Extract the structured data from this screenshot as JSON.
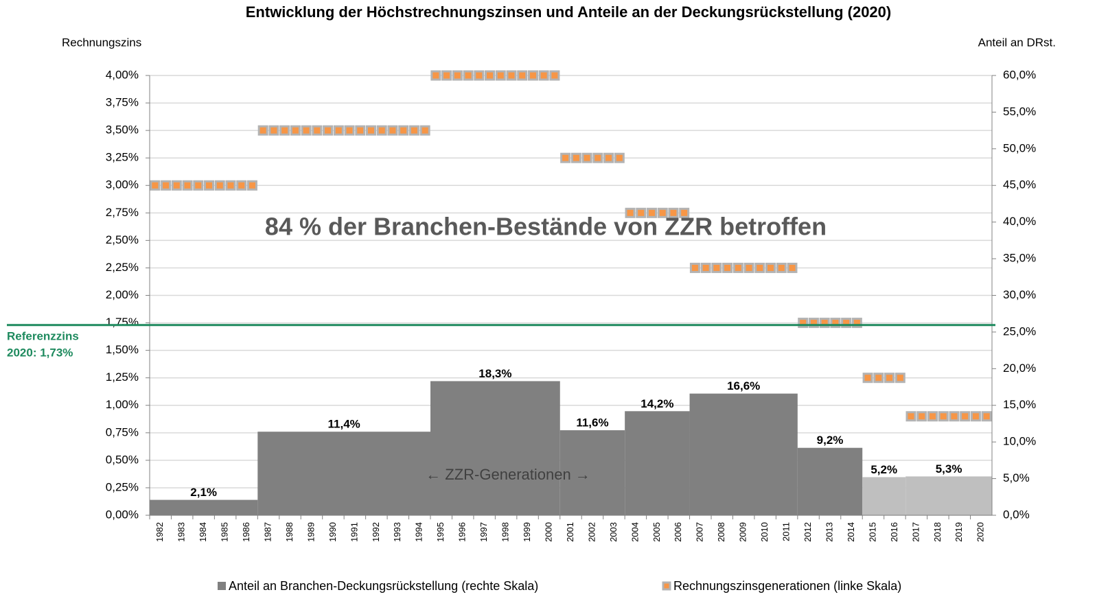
{
  "chart_data": {
    "type": "bar_step",
    "title": "Entwicklung der Höchstrechnungszinsen und Anteile an der Deckungsrückstellung (2020)",
    "y_label": "Rechnungszins",
    "y2_label": "Anteil an DRst.",
    "annotations": [
      "84 % der Branchen-Bestände von ZZR betroffen",
      "← ZZR-Generationen →"
    ],
    "categories": [
      "1982",
      "1983",
      "1984",
      "1985",
      "1986",
      "1987",
      "1988",
      "1989",
      "1990",
      "1991",
      "1992",
      "1993",
      "1994",
      "1995",
      "1996",
      "1997",
      "1998",
      "1999",
      "2000",
      "2001",
      "2002",
      "2003",
      "2004",
      "2005",
      "2006",
      "2007",
      "2008",
      "2009",
      "2010",
      "2011",
      "2012",
      "2013",
      "2014",
      "2015",
      "2016",
      "2017",
      "2018",
      "2019",
      "2020"
    ],
    "ylim": [
      0,
      4
    ],
    "yticks": [
      {
        "value": 0,
        "label": "0,00%"
      },
      {
        "value": 0.25,
        "label": "0,25%"
      },
      {
        "value": 0.5,
        "label": "0,50%"
      },
      {
        "value": 0.75,
        "label": "0,75%"
      },
      {
        "value": 1,
        "label": "1,00%"
      },
      {
        "value": 1.25,
        "label": "1,25%"
      },
      {
        "value": 1.5,
        "label": "1,50%"
      },
      {
        "value": 1.75,
        "label": "1,75%"
      },
      {
        "value": 2,
        "label": "2,00%"
      },
      {
        "value": 2.25,
        "label": "2,25%"
      },
      {
        "value": 2.5,
        "label": "2,50%"
      },
      {
        "value": 2.75,
        "label": "2,75%"
      },
      {
        "value": 3,
        "label": "3,00%"
      },
      {
        "value": 3.25,
        "label": "3,25%"
      },
      {
        "value": 3.5,
        "label": "3,50%"
      },
      {
        "value": 3.75,
        "label": "3,75%"
      },
      {
        "value": 4,
        "label": "4,00%"
      }
    ],
    "y2lim": [
      0,
      60
    ],
    "y2ticks": [
      {
        "value": 0,
        "label": "0,0%"
      },
      {
        "value": 5,
        "label": "5,0%"
      },
      {
        "value": 10,
        "label": "10,0%"
      },
      {
        "value": 15,
        "label": "15,0%"
      },
      {
        "value": 20,
        "label": "20,0%"
      },
      {
        "value": 25,
        "label": "25,0%"
      },
      {
        "value": 30,
        "label": "30,0%"
      },
      {
        "value": 35,
        "label": "35,0%"
      },
      {
        "value": 40,
        "label": "40,0%"
      },
      {
        "value": 45,
        "label": "45,0%"
      },
      {
        "value": 50,
        "label": "50,0%"
      },
      {
        "value": 55,
        "label": "55,0%"
      },
      {
        "value": 60,
        "label": "60,0%"
      }
    ],
    "grid": true,
    "series": [
      {
        "name": "Anteil an Branchen-Deckungsrückstellung (rechte Skala)",
        "axis": "y2",
        "color": "#808080",
        "groups": [
          {
            "first": "1982",
            "last": "1986",
            "value": 2.1,
            "value_label": "2,1%",
            "color": "#808080"
          },
          {
            "first": "1987",
            "last": "1994",
            "value": 11.4,
            "value_label": "11,4%",
            "color": "#808080"
          },
          {
            "first": "1995",
            "last": "2000",
            "value": 18.3,
            "value_label": "18,3%",
            "color": "#808080"
          },
          {
            "first": "2001",
            "last": "2003",
            "value": 11.6,
            "value_label": "11,6%",
            "color": "#808080"
          },
          {
            "first": "2004",
            "last": "2006",
            "value": 14.2,
            "value_label": "14,2%",
            "color": "#808080"
          },
          {
            "first": "2007",
            "last": "2011",
            "value": 16.6,
            "value_label": "16,6%",
            "color": "#808080"
          },
          {
            "first": "2012",
            "last": "2014",
            "value": 9.2,
            "value_label": "9,2%",
            "color": "#808080"
          },
          {
            "first": "2015",
            "last": "2016",
            "value": 5.2,
            "value_label": "5,2%",
            "color": "#bfbfbf"
          },
          {
            "first": "2017",
            "last": "2020",
            "value": 5.3,
            "value_label": "5,3%",
            "color": "#bfbfbf"
          }
        ]
      },
      {
        "name": "Rechnungszinsgenerationen (linke Skala)",
        "color": "#f79646",
        "values": [
          3,
          3,
          3,
          3,
          3,
          3.5,
          3.5,
          3.5,
          3.5,
          3.5,
          3.5,
          3.5,
          3.5,
          4,
          4,
          4,
          4,
          4,
          4,
          3.25,
          3.25,
          3.25,
          2.75,
          2.75,
          2.75,
          2.25,
          2.25,
          2.25,
          2.25,
          2.25,
          1.75,
          1.75,
          1.75,
          1.25,
          1.25,
          0.9,
          0.9,
          0.9,
          0.9
        ]
      }
    ],
    "reference": {
      "value": 1.73,
      "label_lines": [
        "Referenzzins",
        "2020: 1,73%"
      ],
      "color": "#1e8a5e"
    }
  }
}
